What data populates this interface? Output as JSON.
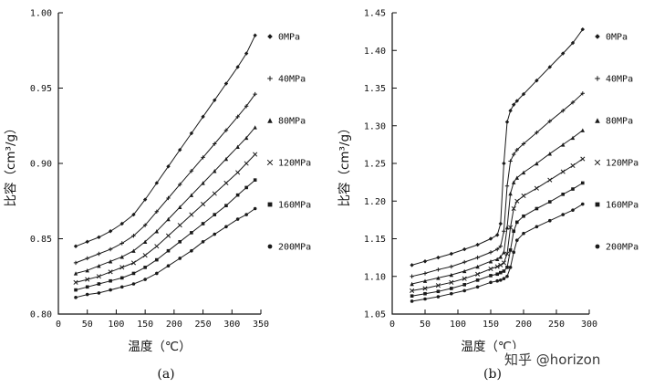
{
  "page": {
    "background": "#ffffff",
    "watermark": "知乎 @horizon"
  },
  "chart_data": [
    {
      "type": "line",
      "caption": "(a)",
      "xlabel": "温度（℃）",
      "ylabel": "比容（cm³/g）",
      "xlim": [
        0,
        350
      ],
      "xticks": [
        0,
        50,
        100,
        150,
        200,
        250,
        300,
        350
      ],
      "ylim": [
        0.8,
        1.0
      ],
      "yticks": [
        0.8,
        0.85,
        0.9,
        0.95,
        1.0
      ],
      "grid": false,
      "legend_position": "right",
      "line_color": "#1a1a1a",
      "x": [
        30,
        50,
        70,
        90,
        110,
        130,
        150,
        170,
        190,
        210,
        230,
        250,
        270,
        290,
        310,
        325,
        340
      ],
      "series": [
        {
          "name": "0MPa",
          "marker": "diamond",
          "values": [
            0.845,
            0.848,
            0.851,
            0.855,
            0.86,
            0.866,
            0.876,
            0.887,
            0.898,
            0.909,
            0.92,
            0.931,
            0.942,
            0.953,
            0.964,
            0.973,
            0.985
          ]
        },
        {
          "name": "40MPa",
          "marker": "plus",
          "values": [
            0.834,
            0.837,
            0.84,
            0.843,
            0.847,
            0.852,
            0.859,
            0.868,
            0.877,
            0.886,
            0.895,
            0.904,
            0.913,
            0.922,
            0.931,
            0.938,
            0.946
          ]
        },
        {
          "name": "80MPa",
          "marker": "triangle",
          "values": [
            0.827,
            0.829,
            0.832,
            0.835,
            0.838,
            0.842,
            0.848,
            0.855,
            0.863,
            0.871,
            0.879,
            0.887,
            0.895,
            0.903,
            0.911,
            0.917,
            0.924
          ]
        },
        {
          "name": "120MPa",
          "marker": "cross",
          "values": [
            0.821,
            0.823,
            0.825,
            0.828,
            0.831,
            0.834,
            0.839,
            0.845,
            0.852,
            0.859,
            0.866,
            0.873,
            0.88,
            0.887,
            0.894,
            0.9,
            0.906
          ]
        },
        {
          "name": "160MPa",
          "marker": "square",
          "values": [
            0.816,
            0.818,
            0.82,
            0.822,
            0.824,
            0.827,
            0.831,
            0.836,
            0.842,
            0.848,
            0.854,
            0.86,
            0.866,
            0.872,
            0.879,
            0.884,
            0.889
          ]
        },
        {
          "name": "200MPa",
          "marker": "circle",
          "values": [
            0.811,
            0.813,
            0.814,
            0.816,
            0.818,
            0.82,
            0.823,
            0.827,
            0.832,
            0.837,
            0.842,
            0.848,
            0.853,
            0.858,
            0.863,
            0.866,
            0.87
          ]
        }
      ]
    },
    {
      "type": "line",
      "caption": "(b)",
      "xlabel": "温度（℃）",
      "ylabel": "比容（cm³/g）",
      "xlim": [
        0,
        300
      ],
      "xticks": [
        0,
        50,
        100,
        150,
        200,
        250,
        300
      ],
      "ylim": [
        1.05,
        1.45
      ],
      "yticks": [
        1.05,
        1.1,
        1.15,
        1.2,
        1.25,
        1.3,
        1.35,
        1.4,
        1.45
      ],
      "grid": false,
      "legend_position": "right",
      "line_color": "#1a1a1a",
      "x": [
        30,
        50,
        70,
        90,
        110,
        130,
        150,
        160,
        165,
        170,
        175,
        180,
        185,
        190,
        200,
        220,
        240,
        260,
        275,
        290
      ],
      "series": [
        {
          "name": "0MPa",
          "marker": "diamond",
          "values": [
            1.115,
            1.12,
            1.125,
            1.13,
            1.136,
            1.142,
            1.15,
            1.155,
            1.17,
            1.25,
            1.305,
            1.32,
            1.328,
            1.333,
            1.342,
            1.36,
            1.378,
            1.396,
            1.41,
            1.428
          ]
        },
        {
          "name": "40MPa",
          "marker": "plus",
          "values": [
            1.1,
            1.104,
            1.109,
            1.113,
            1.119,
            1.125,
            1.132,
            1.136,
            1.14,
            1.16,
            1.22,
            1.253,
            1.262,
            1.268,
            1.276,
            1.291,
            1.306,
            1.32,
            1.331,
            1.343
          ]
        },
        {
          "name": "80MPa",
          "marker": "triangle",
          "values": [
            1.09,
            1.094,
            1.098,
            1.102,
            1.107,
            1.113,
            1.12,
            1.123,
            1.126,
            1.132,
            1.165,
            1.21,
            1.225,
            1.231,
            1.238,
            1.25,
            1.263,
            1.275,
            1.284,
            1.294
          ]
        },
        {
          "name": "120MPa",
          "marker": "cross",
          "values": [
            1.081,
            1.084,
            1.088,
            1.092,
            1.097,
            1.103,
            1.11,
            1.113,
            1.115,
            1.118,
            1.13,
            1.165,
            1.19,
            1.2,
            1.207,
            1.217,
            1.228,
            1.239,
            1.247,
            1.256
          ]
        },
        {
          "name": "160MPa",
          "marker": "square",
          "values": [
            1.074,
            1.077,
            1.08,
            1.084,
            1.089,
            1.095,
            1.101,
            1.103,
            1.105,
            1.107,
            1.112,
            1.135,
            1.16,
            1.172,
            1.18,
            1.19,
            1.199,
            1.209,
            1.216,
            1.224
          ]
        },
        {
          "name": "200MPa",
          "marker": "circle",
          "values": [
            1.067,
            1.07,
            1.073,
            1.077,
            1.081,
            1.086,
            1.092,
            1.094,
            1.095,
            1.097,
            1.1,
            1.112,
            1.132,
            1.148,
            1.157,
            1.166,
            1.174,
            1.182,
            1.188,
            1.196
          ]
        }
      ]
    }
  ]
}
